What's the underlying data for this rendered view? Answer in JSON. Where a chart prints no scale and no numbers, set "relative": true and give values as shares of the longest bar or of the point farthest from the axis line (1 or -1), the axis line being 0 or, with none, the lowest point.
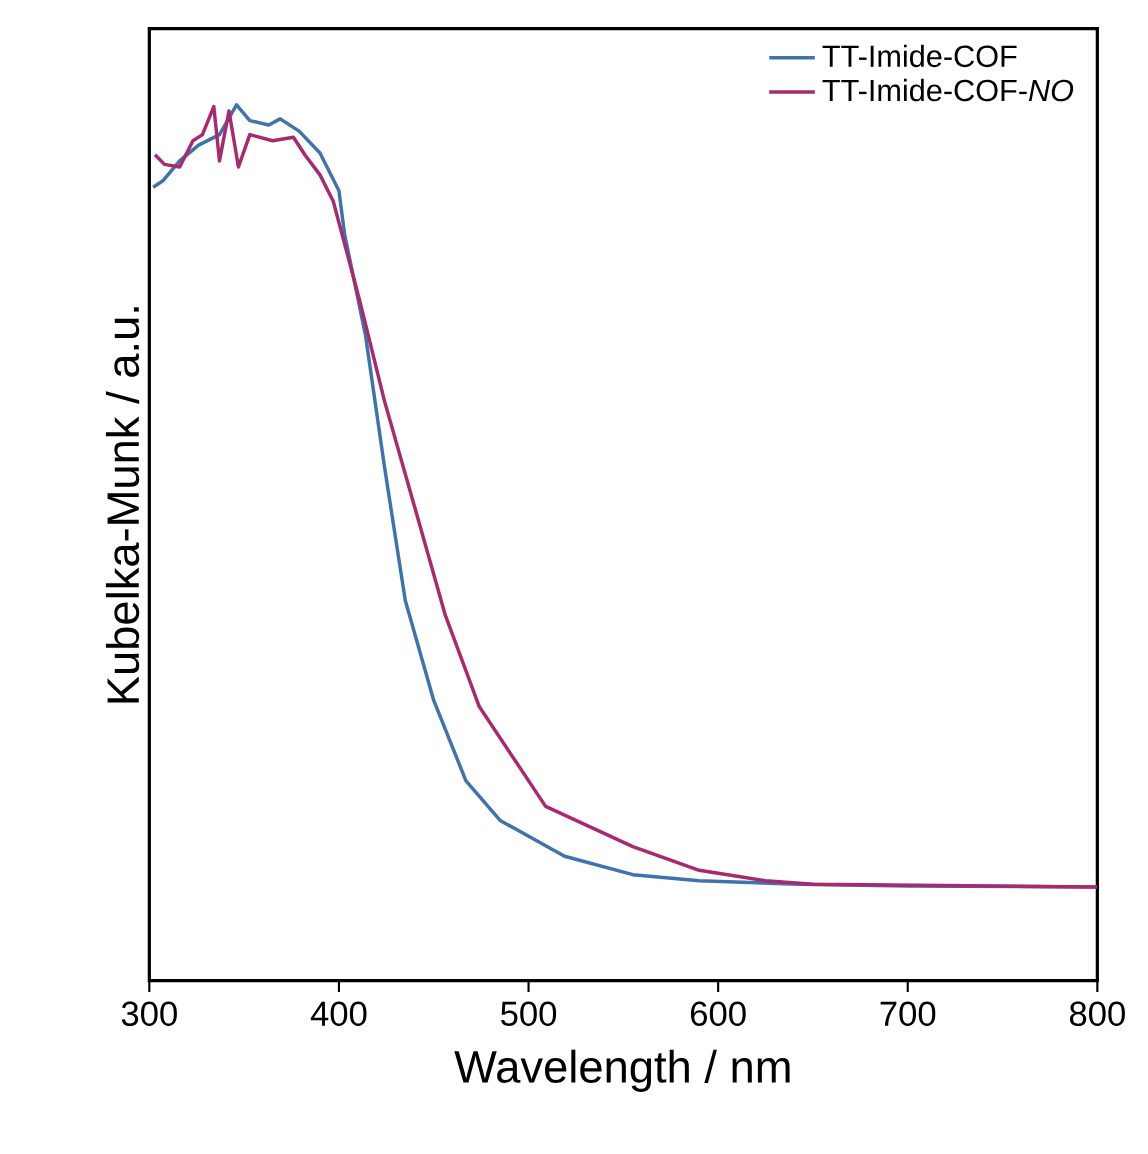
{
  "chart_data": {
    "type": "line",
    "xlabel": "Wavelength / nm",
    "ylabel": "Kubelka-Munk / a.u.",
    "relative": true,
    "xlim": [
      300,
      800
    ],
    "xticks": [
      300,
      400,
      500,
      600,
      700,
      800
    ],
    "legend": "top right",
    "marker": "none",
    "line_style": "solid",
    "grid": false,
    "series": [
      {
        "name": "TT-Imide-COF",
        "color": "#3f73ad",
        "x": [
          302,
          307,
          316,
          326,
          337,
          346,
          353,
          363,
          369,
          379,
          390,
          400,
          403,
          414,
          424,
          435,
          450,
          467,
          485,
          519,
          555,
          590,
          643,
          700,
          800
        ],
        "values": [
          0.906,
          0.913,
          0.936,
          0.954,
          0.966,
          1.0,
          0.982,
          0.977,
          0.984,
          0.97,
          0.945,
          0.902,
          0.852,
          0.737,
          0.587,
          0.434,
          0.32,
          0.228,
          0.183,
          0.142,
          0.121,
          0.114,
          0.11,
          0.108,
          0.107
        ]
      },
      {
        "name": "TT-Imide-COF-*NO*",
        "color": "#a8296f",
        "x": [
          303,
          308,
          316,
          323,
          328,
          334,
          337,
          342,
          347,
          353,
          365,
          376,
          382,
          390,
          397,
          411,
          424,
          439,
          456,
          474,
          509,
          555,
          590,
          625,
          650,
          800
        ],
        "values": [
          0.943,
          0.932,
          0.929,
          0.959,
          0.966,
          0.998,
          0.936,
          0.993,
          0.929,
          0.966,
          0.959,
          0.963,
          0.943,
          0.92,
          0.89,
          0.776,
          0.662,
          0.548,
          0.418,
          0.313,
          0.199,
          0.153,
          0.126,
          0.114,
          0.11,
          0.107
        ]
      }
    ]
  }
}
